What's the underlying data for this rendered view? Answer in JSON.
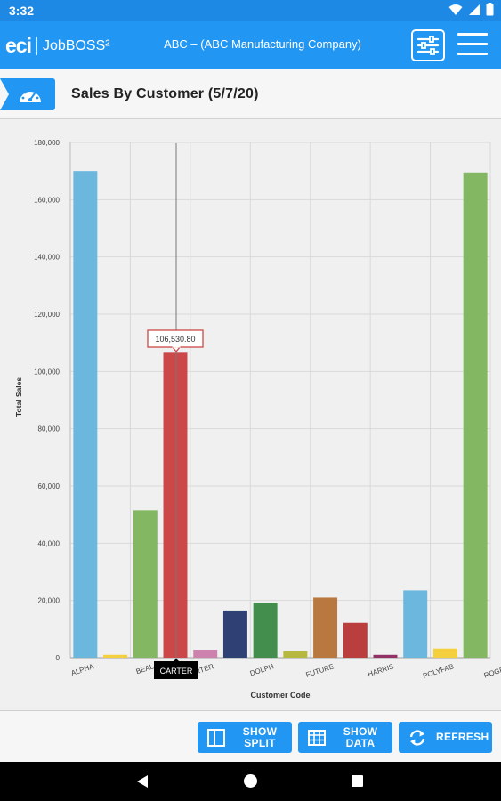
{
  "status_bar": {
    "time": "3:32"
  },
  "app_bar": {
    "logo_eci": "eci",
    "logo_product": "JobBOSS²",
    "company": "ABC – (ABC Manufacturing Company)"
  },
  "title_bar": {
    "title": "Sales By Customer (5/7/20)"
  },
  "tooltip": {
    "value": "106,530.80",
    "category": "CARTER"
  },
  "bottom_bar": {
    "split_label_1": "SHOW",
    "split_label_2": "SPLIT",
    "data_label_1": "SHOW",
    "data_label_2": "DATA",
    "refresh_label": "REFRESH"
  },
  "chart_data": {
    "type": "bar",
    "xlabel": "Customer Code",
    "ylabel": "Total Sales",
    "ylim": [
      0,
      180000
    ],
    "yticks": [
      "0",
      "20,000",
      "40,000",
      "60,000",
      "80,000",
      "100,000",
      "120,000",
      "140,000",
      "160,000",
      "180,000"
    ],
    "tick_labels": [
      "ALPHA",
      "BEAL",
      "CARTER",
      "DOLPH",
      "FUTURE",
      "HARRIS",
      "POLYFAB",
      "ROGERS"
    ],
    "colors": [
      "#6bb7dd",
      "#f4d03f",
      "#84b761",
      "#cc4748",
      "#cd82ad",
      "#2f4074",
      "#448e4d",
      "#b7b83f",
      "#b9783f",
      "#b93e3d",
      "#913167"
    ],
    "values": [
      170000,
      1000,
      51500,
      106530.8,
      2800,
      16500,
      19200,
      2300,
      21000,
      12200,
      1000,
      23500,
      3200,
      169500
    ],
    "bar_colors": [
      "#6bb7dd",
      "#f4d03f",
      "#84b761",
      "#cc4748",
      "#cd82ad",
      "#2f4074",
      "#448e4d",
      "#b7b83f",
      "#b9783f",
      "#b93e3d",
      "#913167",
      "#6bb7dd",
      "#f4d03f",
      "#84b761"
    ],
    "grid": true,
    "legend": "none"
  }
}
